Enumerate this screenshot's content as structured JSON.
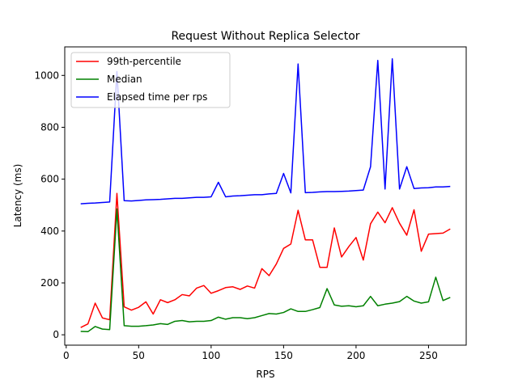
{
  "chart_data": {
    "type": "line",
    "title": "Request Without Replica Selector",
    "xlabel": "RPS",
    "ylabel": "Latency (ms)",
    "xlim": [
      -1,
      276
    ],
    "ylim": [
      -40,
      1110
    ],
    "xticks": [
      0,
      50,
      100,
      150,
      200,
      250
    ],
    "yticks": [
      0,
      200,
      400,
      600,
      800,
      1000
    ],
    "grid": false,
    "legend_position": "top-left",
    "x": [
      10,
      15,
      20,
      25,
      30,
      35,
      40,
      45,
      50,
      55,
      60,
      65,
      70,
      75,
      80,
      85,
      90,
      95,
      100,
      105,
      110,
      115,
      120,
      125,
      130,
      135,
      140,
      145,
      150,
      155,
      160,
      165,
      170,
      175,
      180,
      185,
      190,
      195,
      200,
      205,
      210,
      215,
      220,
      225,
      230,
      235,
      240,
      245,
      250,
      255,
      260,
      265
    ],
    "series": [
      {
        "name": "99th-percentile",
        "color": "#ff0000",
        "values": [
          28,
          42,
          122,
          65,
          58,
          545,
          108,
          95,
          106,
          127,
          80,
          135,
          124,
          135,
          155,
          150,
          180,
          190,
          160,
          170,
          182,
          185,
          175,
          188,
          180,
          255,
          228,
          273,
          333,
          350,
          480,
          366,
          366,
          260,
          260,
          412,
          300,
          340,
          375,
          288,
          428,
          473,
          432,
          490,
          430,
          384,
          482,
          322,
          388,
          390,
          392,
          408
        ]
      },
      {
        "name": "Median",
        "color": "#008000",
        "values": [
          13,
          12,
          32,
          22,
          20,
          485,
          35,
          33,
          33,
          35,
          38,
          43,
          40,
          52,
          55,
          50,
          52,
          52,
          55,
          68,
          60,
          66,
          66,
          62,
          66,
          74,
          82,
          80,
          86,
          100,
          90,
          90,
          97,
          105,
          178,
          115,
          110,
          112,
          108,
          112,
          148,
          112,
          118,
          122,
          128,
          148,
          130,
          122,
          127,
          222,
          132,
          144
        ]
      },
      {
        "name": "Elapsed time per rps",
        "color": "#0000ff",
        "values": [
          505,
          507,
          508,
          510,
          512,
          1015,
          517,
          516,
          518,
          520,
          521,
          522,
          524,
          526,
          526,
          528,
          530,
          530,
          532,
          588,
          532,
          535,
          536,
          538,
          540,
          540,
          543,
          545,
          622,
          547,
          1044,
          548,
          549,
          551,
          552,
          552,
          553,
          554,
          556,
          558,
          648,
          1058,
          562,
          1064,
          562,
          648,
          564,
          566,
          567,
          570,
          570,
          572
        ]
      }
    ]
  }
}
